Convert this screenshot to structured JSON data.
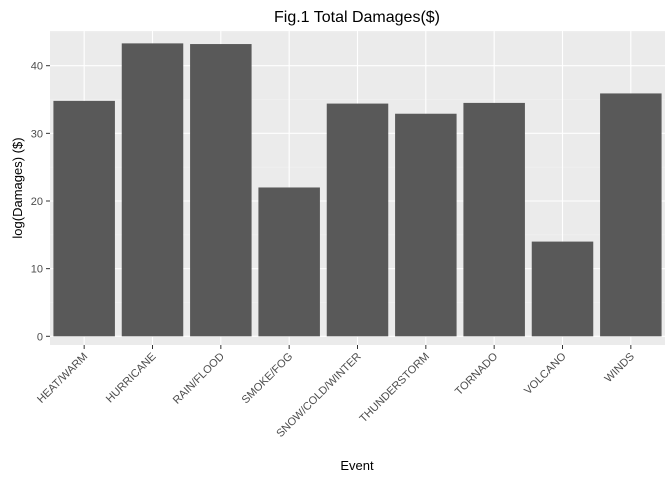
{
  "chart_data": {
    "type": "bar",
    "title": "Fig.1 Total Damages($)",
    "xlabel": "Event",
    "ylabel": "log(Damages) ($)",
    "categories": [
      "HEAT/WARM",
      "HURRICANE",
      "RAIN/FLOOD",
      "SMOKE/FOG",
      "SNOW/COLD/WINTER",
      "THUNDERSTORM",
      "TORNADO",
      "VOLCANO",
      "WINDS"
    ],
    "values": [
      34.8,
      43.3,
      43.2,
      22.0,
      34.4,
      32.9,
      34.5,
      14.0,
      35.9
    ],
    "ylim": [
      0,
      45
    ],
    "yticks": [
      0,
      10,
      20,
      30,
      40
    ],
    "grid": true,
    "colors": {
      "bar": "#595959",
      "panel": "#ebebeb",
      "grid_major": "#ffffff",
      "grid_minor": "#f2f2f2"
    }
  }
}
